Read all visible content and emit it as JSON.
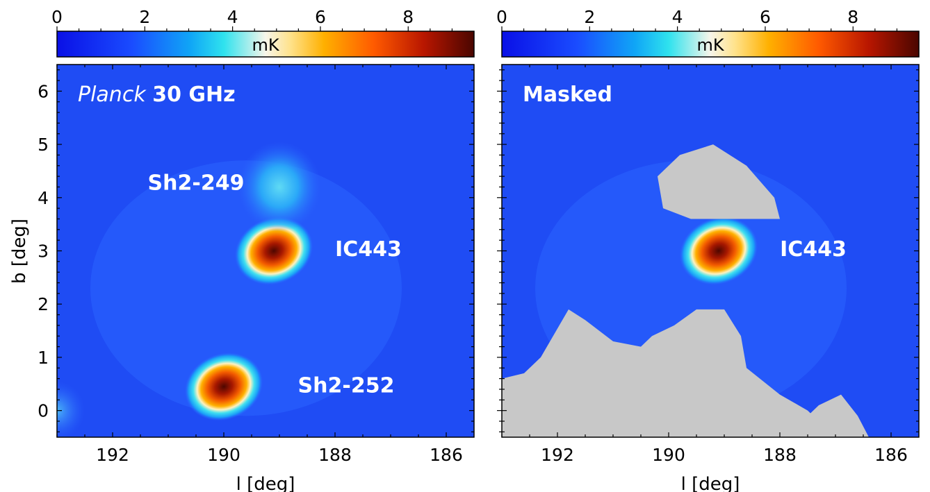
{
  "chart_data": [
    {
      "type": "heatmap",
      "title": "",
      "panel_label_italic": "Planck",
      "panel_label_bold": "30 GHz",
      "xlabel": "l [deg]",
      "ylabel": "b [deg]",
      "xlim": [
        193.0,
        185.5
      ],
      "ylim": [
        -0.5,
        6.5
      ],
      "xticks": [
        "192",
        "190",
        "188",
        "186"
      ],
      "xtick_values": [
        192,
        190,
        188,
        186
      ],
      "yticks": [
        "0",
        "1",
        "2",
        "3",
        "4",
        "5",
        "6"
      ],
      "ytick_values": [
        0,
        1,
        2,
        3,
        4,
        5,
        6
      ],
      "colorbar": {
        "label": "mK",
        "range": [
          0,
          9.5
        ],
        "ticks": [
          "0",
          "2",
          "4",
          "6",
          "8"
        ],
        "tick_values": [
          0,
          2,
          4,
          6,
          8
        ],
        "position": "top",
        "colormap": "blue-cyan-white-orange-darkred"
      },
      "background_mK": 1.2,
      "sources": [
        {
          "name": "IC443",
          "l": 189.1,
          "b": 3.0,
          "peak_mK": 9.0
        },
        {
          "name": "Sh2-252",
          "l": 190.0,
          "b": 0.45,
          "peak_mK": 9.0
        },
        {
          "name": "Sh2-249",
          "l": 189.0,
          "b": 4.2,
          "peak_mK": 3.2
        },
        {
          "name": "",
          "l": 193.0,
          "b": 0.0,
          "peak_mK": 2.5
        }
      ],
      "annotations": [
        "Sh2-249",
        "IC443",
        "Sh2-252"
      ],
      "masked_regions": false
    },
    {
      "type": "heatmap",
      "title": "",
      "panel_label_bold": "Masked",
      "xlabel": "l [deg]",
      "ylabel": "",
      "xlim": [
        193.0,
        185.5
      ],
      "ylim": [
        -0.5,
        6.5
      ],
      "xticks": [
        "192",
        "190",
        "188",
        "186"
      ],
      "xtick_values": [
        192,
        190,
        188,
        186
      ],
      "colorbar": {
        "label": "mK",
        "range": [
          0,
          9.5
        ],
        "ticks": [
          "0",
          "2",
          "4",
          "6",
          "8"
        ],
        "tick_values": [
          0,
          2,
          4,
          6,
          8
        ],
        "position": "top",
        "colormap": "blue-cyan-white-orange-darkred"
      },
      "background_mK": 1.2,
      "sources": [
        {
          "name": "IC443",
          "l": 189.1,
          "b": 3.0,
          "peak_mK": 9.0
        }
      ],
      "annotations": [
        "IC443"
      ],
      "masked_regions": true,
      "mask_color": "#c8c8c8",
      "masks": [
        [
          [
            189.6,
            3.6
          ],
          [
            188.0,
            3.6
          ],
          [
            188.1,
            4.0
          ],
          [
            188.6,
            4.6
          ],
          [
            189.2,
            5.0
          ],
          [
            189.8,
            4.8
          ],
          [
            190.2,
            4.4
          ],
          [
            190.1,
            3.8
          ]
        ],
        [
          [
            193.0,
            -0.5
          ],
          [
            187.0,
            -0.5
          ],
          [
            187.5,
            0.0
          ],
          [
            188.0,
            0.3
          ],
          [
            188.6,
            0.8
          ],
          [
            188.7,
            1.4
          ],
          [
            189.0,
            1.9
          ],
          [
            189.5,
            1.9
          ],
          [
            189.9,
            1.6
          ],
          [
            190.3,
            1.4
          ],
          [
            190.5,
            1.2
          ],
          [
            191.0,
            1.3
          ],
          [
            191.5,
            1.7
          ],
          [
            191.8,
            1.9
          ],
          [
            192.3,
            1.0
          ],
          [
            192.6,
            0.7
          ],
          [
            193.0,
            0.6
          ]
        ],
        [
          [
            187.5,
            -0.5
          ],
          [
            186.4,
            -0.5
          ],
          [
            186.6,
            -0.1
          ],
          [
            186.9,
            0.3
          ],
          [
            187.3,
            0.1
          ],
          [
            187.6,
            -0.2
          ]
        ]
      ]
    }
  ],
  "colors": {
    "text_on_map": "#ffffff",
    "axis": "#000000",
    "mask": "#c8c8c8"
  }
}
